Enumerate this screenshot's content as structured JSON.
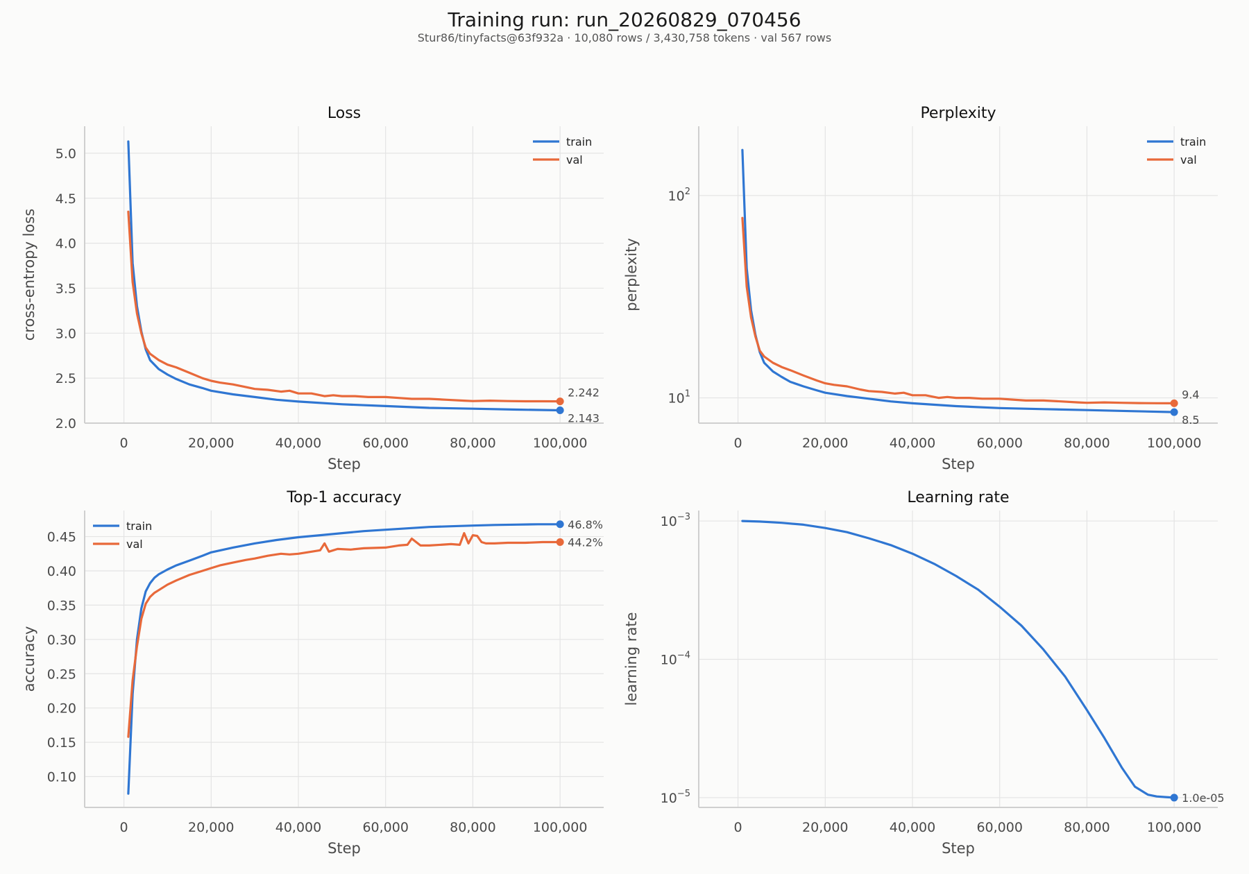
{
  "header": {
    "title": "Training run: run_20260829_070456",
    "subtitle": "Stur86/tinyfacts@63f932a  ·  10,080 rows / 3,430,758 tokens  ·  val 567 rows"
  },
  "colors": {
    "train": "#2f76d2",
    "val": "#e8693a",
    "grid": "#e4e4e4",
    "axis": "#cfcfcf",
    "text": "#4a4a4a"
  },
  "chart_data": [
    {
      "type": "line",
      "title": "Loss",
      "xlabel": "Step",
      "ylabel": "cross-entropy loss",
      "xlim": [
        -9000,
        110000
      ],
      "ylim": [
        2.0,
        5.3
      ],
      "xticks": [
        0,
        20000,
        40000,
        60000,
        80000,
        100000
      ],
      "xtick_labels": [
        "0",
        "20,000",
        "40,000",
        "60,000",
        "80,000",
        "100,000"
      ],
      "yticks": [
        2.0,
        2.5,
        3.0,
        3.5,
        4.0,
        4.5,
        5.0
      ],
      "ytick_labels": [
        "2.0",
        "2.5",
        "3.0",
        "3.5",
        "4.0",
        "4.5",
        "5.0"
      ],
      "legend": "top-right",
      "grid": true,
      "series": [
        {
          "name": "train",
          "x": [
            1000,
            2000,
            3000,
            4000,
            5000,
            6000,
            8000,
            10000,
            12000,
            15000,
            18000,
            20000,
            25000,
            30000,
            35000,
            40000,
            50000,
            60000,
            70000,
            80000,
            90000,
            100000
          ],
          "y": [
            5.13,
            3.78,
            3.3,
            3.02,
            2.82,
            2.7,
            2.6,
            2.54,
            2.49,
            2.43,
            2.39,
            2.36,
            2.32,
            2.29,
            2.26,
            2.24,
            2.21,
            2.19,
            2.17,
            2.16,
            2.15,
            2.143
          ],
          "end_label": "2.143"
        },
        {
          "name": "val",
          "x": [
            1000,
            2000,
            3000,
            4000,
            5000,
            6000,
            8000,
            10000,
            12000,
            15000,
            18000,
            20000,
            22000,
            25000,
            28000,
            30000,
            33000,
            36000,
            38000,
            40000,
            43000,
            46000,
            48000,
            50000,
            53000,
            56000,
            60000,
            63000,
            66000,
            70000,
            74000,
            78000,
            80000,
            84000,
            88000,
            92000,
            96000,
            100000
          ],
          "y": [
            4.35,
            3.57,
            3.22,
            3.0,
            2.84,
            2.77,
            2.7,
            2.65,
            2.62,
            2.56,
            2.5,
            2.47,
            2.45,
            2.43,
            2.4,
            2.38,
            2.37,
            2.35,
            2.36,
            2.33,
            2.33,
            2.3,
            2.31,
            2.3,
            2.3,
            2.29,
            2.29,
            2.28,
            2.27,
            2.27,
            2.26,
            2.25,
            2.245,
            2.25,
            2.245,
            2.243,
            2.243,
            2.242
          ],
          "end_label": "2.242"
        }
      ]
    },
    {
      "type": "line",
      "title": "Perplexity",
      "xlabel": "Step",
      "ylabel": "perplexity",
      "yscale": "log",
      "xlim": [
        -9000,
        110000
      ],
      "ylim": [
        7.5,
        220
      ],
      "xticks": [
        0,
        20000,
        40000,
        60000,
        80000,
        100000
      ],
      "xtick_labels": [
        "0",
        "20,000",
        "40,000",
        "60,000",
        "80,000",
        "100,000"
      ],
      "yticks": [
        10,
        100
      ],
      "ytick_labels": [
        [
          "10",
          "1"
        ],
        [
          "10",
          "2"
        ]
      ],
      "legend": "top-right",
      "grid": true,
      "series": [
        {
          "name": "train",
          "x": [
            1000,
            2000,
            3000,
            4000,
            5000,
            6000,
            8000,
            10000,
            12000,
            15000,
            18000,
            20000,
            25000,
            30000,
            35000,
            40000,
            50000,
            60000,
            70000,
            80000,
            90000,
            100000
          ],
          "y": [
            168,
            43.8,
            27.1,
            20.5,
            16.8,
            14.9,
            13.5,
            12.7,
            12.0,
            11.4,
            10.9,
            10.6,
            10.2,
            9.9,
            9.6,
            9.4,
            9.1,
            8.9,
            8.8,
            8.7,
            8.6,
            8.5
          ],
          "end_label": "8.5"
        },
        {
          "name": "val",
          "x": [
            1000,
            2000,
            3000,
            4000,
            5000,
            6000,
            8000,
            10000,
            12000,
            15000,
            18000,
            20000,
            22000,
            25000,
            28000,
            30000,
            33000,
            36000,
            38000,
            40000,
            43000,
            46000,
            48000,
            50000,
            53000,
            56000,
            60000,
            63000,
            66000,
            70000,
            74000,
            78000,
            80000,
            84000,
            88000,
            92000,
            96000,
            100000
          ],
          "y": [
            77.5,
            35.5,
            25.0,
            20.1,
            17.1,
            16.0,
            14.9,
            14.2,
            13.7,
            12.9,
            12.2,
            11.8,
            11.6,
            11.4,
            11.0,
            10.8,
            10.7,
            10.5,
            10.6,
            10.3,
            10.3,
            10.0,
            10.1,
            10.0,
            10.0,
            9.9,
            9.9,
            9.8,
            9.7,
            9.7,
            9.6,
            9.5,
            9.45,
            9.5,
            9.45,
            9.42,
            9.41,
            9.4
          ],
          "end_label": "9.4"
        }
      ]
    },
    {
      "type": "line",
      "title": "Top-1 accuracy",
      "xlabel": "Step",
      "ylabel": "accuracy",
      "xlim": [
        -9000,
        110000
      ],
      "ylim": [
        0.055,
        0.488
      ],
      "xticks": [
        0,
        20000,
        40000,
        60000,
        80000,
        100000
      ],
      "xtick_labels": [
        "0",
        "20,000",
        "40,000",
        "60,000",
        "80,000",
        "100,000"
      ],
      "yticks": [
        0.1,
        0.15,
        0.2,
        0.25,
        0.3,
        0.35,
        0.4,
        0.45
      ],
      "ytick_labels": [
        "0.10",
        "0.15",
        "0.20",
        "0.25",
        "0.30",
        "0.35",
        "0.40",
        "0.45"
      ],
      "legend": "top-left",
      "grid": true,
      "series": [
        {
          "name": "train",
          "x": [
            1000,
            2000,
            3000,
            4000,
            5000,
            6000,
            7000,
            8000,
            10000,
            12000,
            15000,
            18000,
            20000,
            25000,
            30000,
            35000,
            40000,
            45000,
            50000,
            55000,
            60000,
            65000,
            70000,
            75000,
            80000,
            85000,
            90000,
            95000,
            100000
          ],
          "y": [
            0.075,
            0.22,
            0.3,
            0.345,
            0.37,
            0.382,
            0.39,
            0.395,
            0.402,
            0.408,
            0.415,
            0.422,
            0.427,
            0.434,
            0.44,
            0.445,
            0.449,
            0.452,
            0.455,
            0.458,
            0.46,
            0.462,
            0.464,
            0.465,
            0.466,
            0.467,
            0.4675,
            0.468,
            0.468
          ],
          "end_label": "46.8%"
        },
        {
          "name": "val",
          "x": [
            1000,
            2000,
            3000,
            4000,
            5000,
            6000,
            7000,
            8000,
            10000,
            12000,
            15000,
            18000,
            20000,
            22000,
            25000,
            28000,
            30000,
            33000,
            36000,
            38000,
            40000,
            43000,
            45000,
            46000,
            47000,
            49000,
            52000,
            55000,
            60000,
            63000,
            65000,
            66000,
            68000,
            70000,
            75000,
            77000,
            78000,
            79000,
            80000,
            81000,
            82000,
            83000,
            85000,
            88000,
            92000,
            96000,
            100000
          ],
          "y": [
            0.158,
            0.24,
            0.29,
            0.33,
            0.352,
            0.362,
            0.368,
            0.372,
            0.38,
            0.386,
            0.394,
            0.4,
            0.404,
            0.408,
            0.412,
            0.416,
            0.418,
            0.422,
            0.425,
            0.424,
            0.425,
            0.428,
            0.43,
            0.44,
            0.428,
            0.432,
            0.431,
            0.433,
            0.434,
            0.437,
            0.438,
            0.447,
            0.437,
            0.437,
            0.439,
            0.438,
            0.455,
            0.44,
            0.452,
            0.451,
            0.442,
            0.44,
            0.44,
            0.441,
            0.441,
            0.442,
            0.442
          ],
          "end_label": "44.2%"
        }
      ]
    },
    {
      "type": "line",
      "title": "Learning rate",
      "xlabel": "Step",
      "ylabel": "learning rate",
      "yscale": "log",
      "xlim": [
        -9000,
        110000
      ],
      "ylim": [
        8.5e-06,
        0.00119
      ],
      "xticks": [
        0,
        20000,
        40000,
        60000,
        80000,
        100000
      ],
      "xtick_labels": [
        "0",
        "20,000",
        "40,000",
        "60,000",
        "80,000",
        "100,000"
      ],
      "yticks": [
        1e-05,
        0.0001,
        0.001
      ],
      "ytick_labels": [
        [
          "10",
          "−5"
        ],
        [
          "10",
          "−4"
        ],
        [
          "10",
          "−3"
        ]
      ],
      "legend": "none",
      "grid": true,
      "series": [
        {
          "name": "",
          "x": [
            1000,
            5000,
            10000,
            15000,
            20000,
            25000,
            30000,
            35000,
            40000,
            45000,
            50000,
            55000,
            60000,
            65000,
            70000,
            75000,
            80000,
            84000,
            88000,
            91000,
            94000,
            96000,
            98000,
            100000
          ],
          "y": [
            0.001,
            0.00099,
            0.00097,
            0.00094,
            0.00089,
            0.00083,
            0.00075,
            0.00067,
            0.00058,
            0.00049,
            0.0004,
            0.00032,
            0.00024,
            0.000175,
            0.000118,
            7.5e-05,
            4.3e-05,
            2.7e-05,
            1.65e-05,
            1.2e-05,
            1.05e-05,
            1.02e-05,
            1.01e-05,
            1e-05
          ],
          "end_label": "1.0e-05"
        }
      ]
    }
  ]
}
